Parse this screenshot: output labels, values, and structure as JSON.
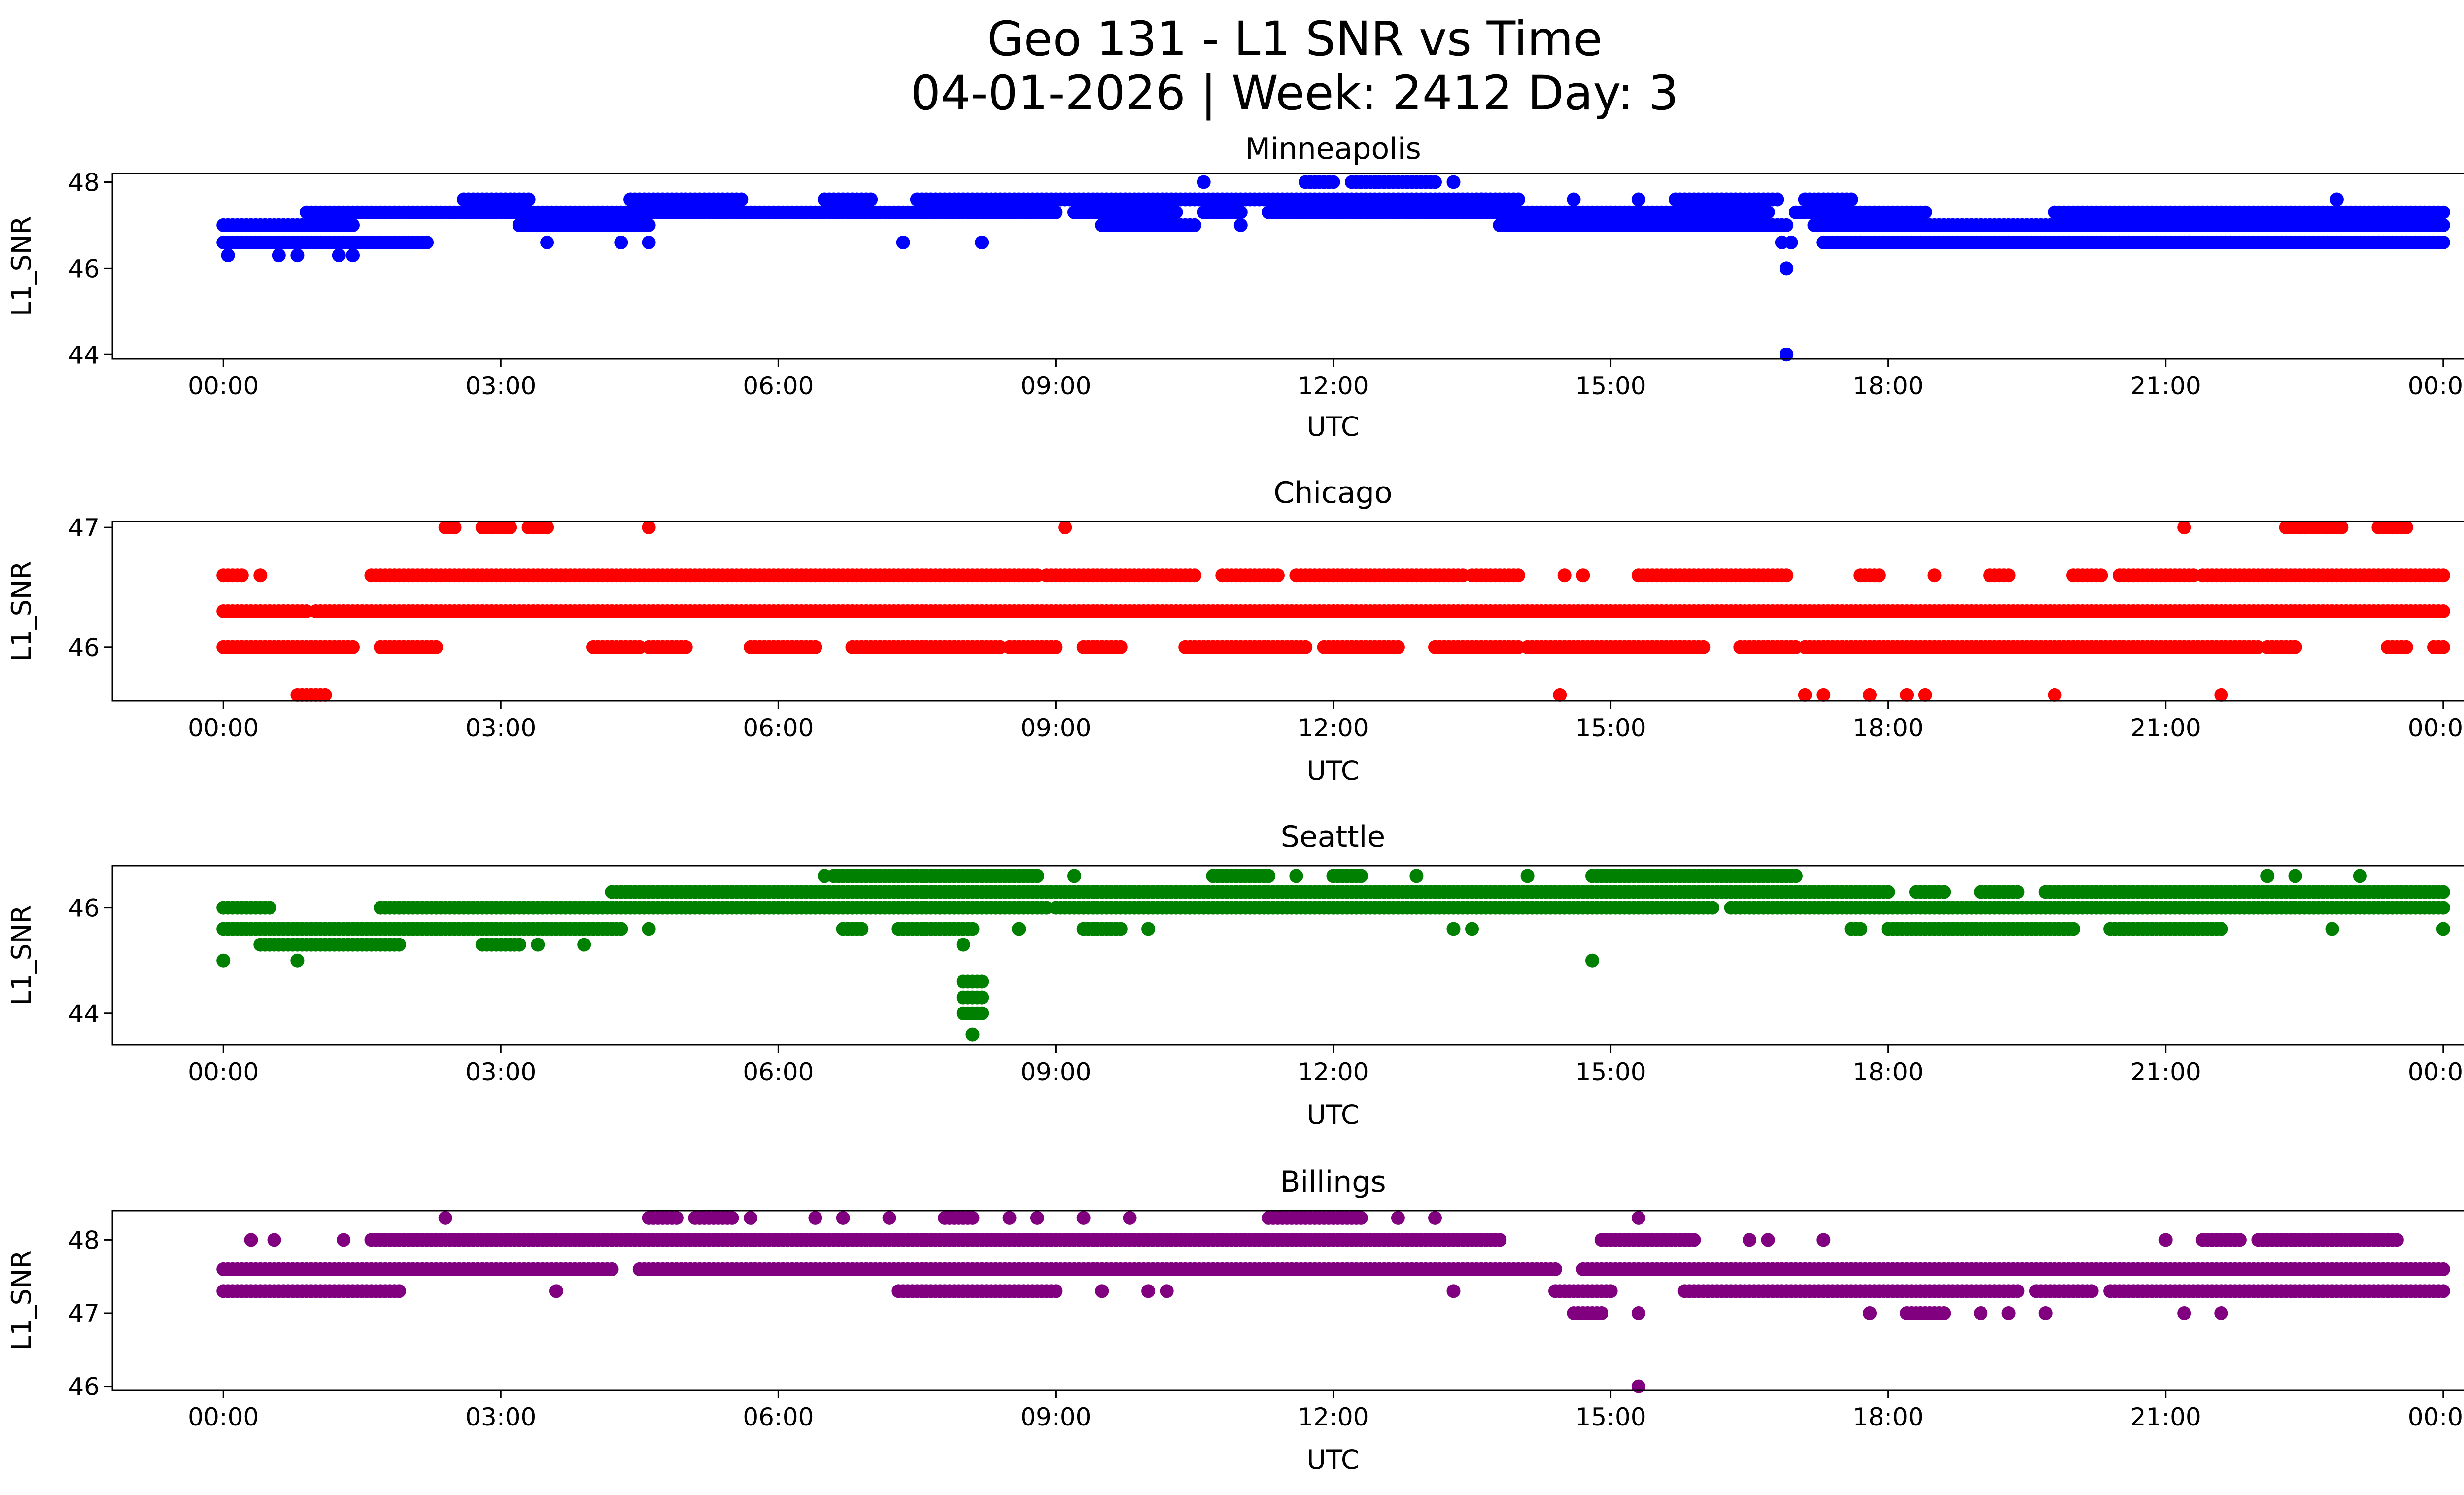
{
  "figure": {
    "title_line1": "Geo 131 - L1 SNR vs Time",
    "title_line2": "04-01-2026 | Week: 2412 Day: 3"
  },
  "chart_data": [
    {
      "type": "scatter",
      "title": "Minneapolis",
      "xlabel": "UTC",
      "ylabel": "L1_SNR",
      "color": "#0000ff",
      "xlim": [
        -1.2,
        25.2
      ],
      "ylim": [
        43.9,
        48.2
      ],
      "yticks": [
        44,
        46,
        48
      ],
      "xtick_labels": [
        "00:00",
        "03:00",
        "06:00",
        "09:00",
        "12:00",
        "15:00",
        "18:00",
        "21:00",
        "00:00"
      ],
      "series": [
        {
          "name": "level_47.0",
          "y": 47.0,
          "ranges": [
            [
              0,
              1.4
            ],
            [
              3.2,
              4.6
            ],
            [
              9.5,
              10.5
            ],
            [
              13.8,
              16.9
            ],
            [
              17.2,
              24.0
            ]
          ]
        },
        {
          "name": "level_46.6",
          "y": 46.6,
          "ranges": [
            [
              0,
              2.2
            ],
            [
              17.3,
              24.0
            ]
          ]
        },
        {
          "name": "level_47.3",
          "y": 47.3,
          "ranges": [
            [
              0.9,
              9.0
            ],
            [
              9.2,
              10.3
            ],
            [
              10.6,
              11.0
            ],
            [
              11.3,
              16.7
            ],
            [
              17.0,
              18.4
            ],
            [
              19.8,
              24.0
            ]
          ]
        },
        {
          "name": "level_47.6",
          "y": 47.6,
          "ranges": [
            [
              2.6,
              3.3
            ],
            [
              4.4,
              5.6
            ],
            [
              6.5,
              7.0
            ],
            [
              7.5,
              14.0
            ],
            [
              15.7,
              16.8
            ],
            [
              17.1,
              17.6
            ]
          ]
        },
        {
          "name": "level_48.0",
          "y": 48.0,
          "ranges": [
            [
              11.7,
              12.0
            ],
            [
              12.2,
              13.1
            ]
          ]
        }
      ],
      "points": [
        [
          0.05,
          46.3
        ],
        [
          0.6,
          46.3
        ],
        [
          0.8,
          46.3
        ],
        [
          1.25,
          46.3
        ],
        [
          1.4,
          46.3
        ],
        [
          3.5,
          46.6
        ],
        [
          4.3,
          46.6
        ],
        [
          4.6,
          46.6
        ],
        [
          7.35,
          46.6
        ],
        [
          8.2,
          46.6
        ],
        [
          10.6,
          48.0
        ],
        [
          11.0,
          47.0
        ],
        [
          13.3,
          48.0
        ],
        [
          13.6,
          47.6
        ],
        [
          14.6,
          47.6
        ],
        [
          15.3,
          47.6
        ],
        [
          16.85,
          46.6
        ],
        [
          16.95,
          46.6
        ],
        [
          16.9,
          46.0
        ],
        [
          16.9,
          44.0
        ],
        [
          17.7,
          46.6
        ],
        [
          20.3,
          46.6
        ],
        [
          20.5,
          46.6
        ],
        [
          20.9,
          46.6
        ],
        [
          21.25,
          46.6
        ],
        [
          21.7,
          46.6
        ],
        [
          22.3,
          46.6
        ],
        [
          22.7,
          46.6
        ],
        [
          23.3,
          46.6
        ],
        [
          23.6,
          46.6
        ],
        [
          22.85,
          47.6
        ]
      ]
    },
    {
      "type": "scatter",
      "title": "Chicago",
      "xlabel": "UTC",
      "ylabel": "L1_SNR",
      "color": "#ff0000",
      "xlim": [
        -1.2,
        25.2
      ],
      "ylim": [
        45.55,
        47.05
      ],
      "yticks": [
        46,
        47
      ],
      "xtick_labels": [
        "00:00",
        "03:00",
        "06:00",
        "09:00",
        "12:00",
        "15:00",
        "18:00",
        "21:00",
        "00:00"
      ],
      "series": [
        {
          "name": "level_46.3",
          "y": 46.3,
          "ranges": [
            [
              0,
              0.9
            ],
            [
              1.0,
              24.0
            ]
          ]
        },
        {
          "name": "level_46.0",
          "y": 46.0,
          "ranges": [
            [
              0,
              1.4
            ],
            [
              1.7,
              2.3
            ],
            [
              4.0,
              4.5
            ],
            [
              4.6,
              5.0
            ],
            [
              5.7,
              6.4
            ],
            [
              6.8,
              8.4
            ],
            [
              8.5,
              9.0
            ],
            [
              9.3,
              9.7
            ],
            [
              10.4,
              11.7
            ],
            [
              11.9,
              12.7
            ],
            [
              13.1,
              14.0
            ],
            [
              14.1,
              16.0
            ],
            [
              16.4,
              17.0
            ],
            [
              17.1,
              22.0
            ],
            [
              22.1,
              22.4
            ],
            [
              23.4,
              23.6
            ],
            [
              23.9,
              24.0
            ]
          ]
        },
        {
          "name": "level_46.6",
          "y": 46.6,
          "ranges": [
            [
              0,
              0.2
            ],
            [
              1.6,
              8.8
            ],
            [
              8.9,
              10.5
            ],
            [
              10.8,
              11.4
            ],
            [
              11.6,
              13.4
            ],
            [
              13.5,
              14.0
            ],
            [
              15.3,
              16.9
            ],
            [
              17.7,
              17.9
            ],
            [
              19.1,
              19.3
            ],
            [
              20.0,
              20.3
            ],
            [
              20.5,
              21.3
            ],
            [
              21.4,
              24.0
            ]
          ]
        },
        {
          "name": "level_47.0",
          "y": 47.0,
          "ranges": [
            [
              2.4,
              2.5
            ],
            [
              2.8,
              3.1
            ],
            [
              3.3,
              3.5
            ],
            [
              22.3,
              22.9
            ],
            [
              23.3,
              23.6
            ]
          ]
        },
        {
          "name": "level_45.6",
          "y": 45.6,
          "ranges": [
            [
              0.8,
              1.1
            ]
          ]
        }
      ],
      "points": [
        [
          4.6,
          47.0
        ],
        [
          9.1,
          47.0
        ],
        [
          21.2,
          47.0
        ],
        [
          0.4,
          46.6
        ],
        [
          14.5,
          46.6
        ],
        [
          14.7,
          46.6
        ],
        [
          18.5,
          46.6
        ],
        [
          14.45,
          45.6
        ],
        [
          17.1,
          45.6
        ],
        [
          17.3,
          45.6
        ],
        [
          17.8,
          45.6
        ],
        [
          18.2,
          45.6
        ],
        [
          18.4,
          45.6
        ],
        [
          19.8,
          45.6
        ],
        [
          21.6,
          45.6
        ],
        [
          15.2,
          46.0
        ],
        [
          16.7,
          46.0
        ]
      ]
    },
    {
      "type": "scatter",
      "title": "Seattle",
      "xlabel": "UTC",
      "ylabel": "L1_SNR",
      "color": "#008000",
      "xlim": [
        -1.2,
        25.2
      ],
      "ylim": [
        43.4,
        46.8
      ],
      "yticks": [
        44,
        46
      ],
      "xtick_labels": [
        "00:00",
        "03:00",
        "06:00",
        "09:00",
        "12:00",
        "15:00",
        "18:00",
        "21:00",
        "00:00"
      ],
      "series": [
        {
          "name": "level_45.6",
          "y": 45.6,
          "ranges": [
            [
              0,
              4.3
            ],
            [
              6.7,
              6.9
            ],
            [
              7.3,
              8.1
            ],
            [
              9.3,
              9.7
            ],
            [
              17.6,
              17.7
            ],
            [
              18.0,
              20.0
            ],
            [
              20.4,
              21.6
            ]
          ]
        },
        {
          "name": "level_46.0",
          "y": 46.0,
          "ranges": [
            [
              0,
              0.5
            ],
            [
              1.7,
              1.9
            ],
            [
              1.9,
              8.9
            ],
            [
              9.0,
              16.1
            ],
            [
              16.3,
              24.0
            ]
          ]
        },
        {
          "name": "level_45.3",
          "y": 45.3,
          "ranges": [
            [
              0.4,
              1.9
            ],
            [
              2.8,
              3.2
            ]
          ]
        },
        {
          "name": "level_46.3",
          "y": 46.3,
          "ranges": [
            [
              4.2,
              18.0
            ],
            [
              18.3,
              18.6
            ],
            [
              19.0,
              19.4
            ],
            [
              19.7,
              24.0
            ]
          ]
        },
        {
          "name": "level_46.6",
          "y": 46.6,
          "ranges": [
            [
              6.6,
              8.8
            ],
            [
              10.7,
              11.3
            ],
            [
              12.0,
              12.3
            ],
            [
              14.8,
              17.0
            ]
          ]
        },
        {
          "name": "level_44.6",
          "y": 44.6,
          "ranges": [
            [
              8.0,
              8.2
            ]
          ]
        },
        {
          "name": "level_44.3",
          "y": 44.3,
          "ranges": [
            [
              8.0,
              8.2
            ]
          ]
        },
        {
          "name": "level_44.0",
          "y": 44.0,
          "ranges": [
            [
              8.0,
              8.2
            ]
          ]
        }
      ],
      "points": [
        [
          0,
          45.0
        ],
        [
          0.8,
          45.0
        ],
        [
          3.4,
          45.3
        ],
        [
          3.9,
          45.3
        ],
        [
          4.6,
          45.6
        ],
        [
          6.5,
          46.6
        ],
        [
          9.2,
          46.6
        ],
        [
          11.6,
          46.6
        ],
        [
          12.9,
          46.6
        ],
        [
          14.1,
          46.6
        ],
        [
          22.1,
          46.6
        ],
        [
          22.4,
          46.6
        ],
        [
          23.1,
          46.6
        ],
        [
          8.0,
          45.3
        ],
        [
          8.1,
          43.6
        ],
        [
          8.6,
          45.6
        ],
        [
          10.0,
          45.6
        ],
        [
          13.3,
          45.6
        ],
        [
          13.5,
          45.6
        ],
        [
          14.8,
          45.0
        ],
        [
          22.8,
          45.6
        ],
        [
          24.0,
          45.6
        ]
      ]
    },
    {
      "type": "scatter",
      "title": "Billings",
      "xlabel": "UTC",
      "ylabel": "L1_SNR",
      "color": "#800080",
      "xlim": [
        -1.2,
        25.2
      ],
      "ylim": [
        45.95,
        48.4
      ],
      "yticks": [
        46,
        47,
        48
      ],
      "xtick_labels": [
        "00:00",
        "03:00",
        "06:00",
        "09:00",
        "12:00",
        "15:00",
        "18:00",
        "21:00",
        "00:00"
      ],
      "series": [
        {
          "name": "level_47.6",
          "y": 47.6,
          "ranges": [
            [
              0,
              4.2
            ],
            [
              4.5,
              14.4
            ],
            [
              14.7,
              24.0
            ]
          ]
        },
        {
          "name": "level_47.3",
          "y": 47.3,
          "ranges": [
            [
              0,
              1.9
            ],
            [
              7.3,
              9.0
            ],
            [
              14.4,
              15.0
            ],
            [
              15.8,
              19.4
            ],
            [
              19.6,
              20.2
            ],
            [
              20.4,
              24.0
            ]
          ]
        },
        {
          "name": "level_48.0",
          "y": 48.0,
          "ranges": [
            [
              1.6,
              13.8
            ],
            [
              14.9,
              15.9
            ],
            [
              21.4,
              21.8
            ],
            [
              22.0,
              23.5
            ]
          ]
        },
        {
          "name": "level_48.3",
          "y": 48.3,
          "ranges": [
            [
              4.6,
              4.9
            ],
            [
              5.1,
              5.5
            ],
            [
              7.8,
              8.1
            ],
            [
              11.3,
              12.3
            ]
          ]
        },
        {
          "name": "level_47.0",
          "y": 47.0,
          "ranges": [
            [
              14.6,
              14.9
            ],
            [
              18.2,
              18.6
            ]
          ]
        }
      ],
      "points": [
        [
          0.3,
          48.0
        ],
        [
          0.55,
          48.0
        ],
        [
          1.3,
          48.0
        ],
        [
          21.0,
          48.0
        ],
        [
          16.5,
          48.0
        ],
        [
          16.7,
          48.0
        ],
        [
          17.3,
          48.0
        ],
        [
          2.4,
          48.3
        ],
        [
          5.7,
          48.3
        ],
        [
          6.4,
          48.3
        ],
        [
          6.7,
          48.3
        ],
        [
          7.2,
          48.3
        ],
        [
          8.5,
          48.3
        ],
        [
          8.8,
          48.3
        ],
        [
          9.3,
          48.3
        ],
        [
          9.8,
          48.3
        ],
        [
          12.7,
          48.3
        ],
        [
          13.1,
          48.3
        ],
        [
          15.3,
          48.3
        ],
        [
          3.6,
          47.3
        ],
        [
          13.3,
          47.3
        ],
        [
          10.0,
          47.3
        ],
        [
          10.2,
          47.3
        ],
        [
          9.5,
          47.3
        ],
        [
          15.3,
          47.0
        ],
        [
          17.8,
          47.0
        ],
        [
          19.0,
          47.0
        ],
        [
          19.3,
          47.0
        ],
        [
          19.7,
          47.0
        ],
        [
          21.2,
          47.0
        ],
        [
          21.6,
          47.0
        ],
        [
          15.3,
          46.0
        ]
      ]
    }
  ]
}
